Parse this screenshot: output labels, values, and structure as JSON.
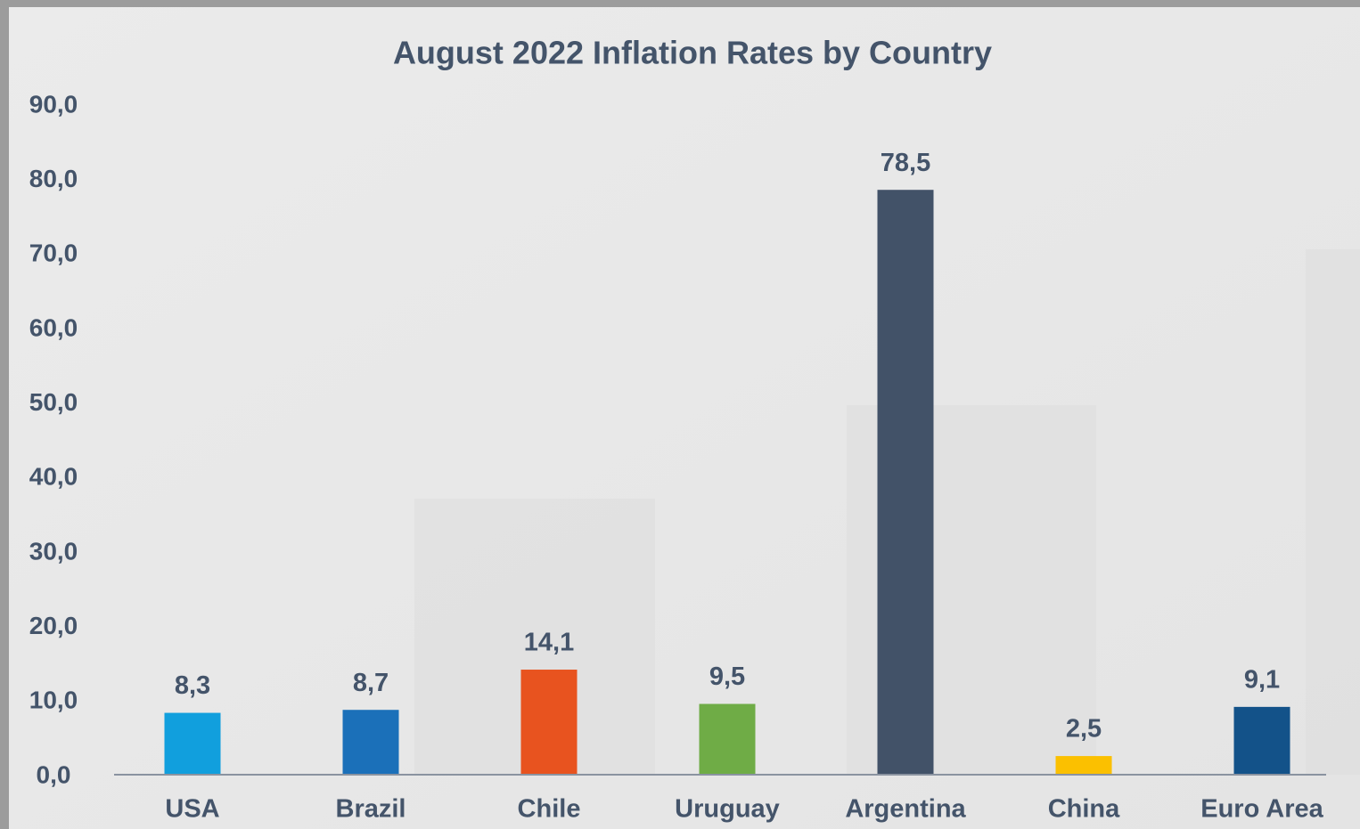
{
  "chart_data": {
    "type": "bar",
    "title": "August 2022 Inflation Rates by Country",
    "categories": [
      "USA",
      "Brazil",
      "Chile",
      "Uruguay",
      "Argentina",
      "China",
      "Euro Area"
    ],
    "values": [
      8.3,
      8.7,
      14.1,
      9.5,
      78.5,
      2.5,
      9.1
    ],
    "value_labels": [
      "8,3",
      "8,7",
      "14,1",
      "9,5",
      "78,5",
      "2,5",
      "9,1"
    ],
    "colors": [
      "#119fdd",
      "#1b70b9",
      "#e8531f",
      "#6fac46",
      "#425268",
      "#fbc000",
      "#135289"
    ],
    "ylim": [
      0,
      90
    ],
    "yticks": [
      {
        "value": 0,
        "label": "0,0"
      },
      {
        "value": 10,
        "label": "10,0"
      },
      {
        "value": 20,
        "label": "20,0"
      },
      {
        "value": 30,
        "label": "30,0"
      },
      {
        "value": 40,
        "label": "40,0"
      },
      {
        "value": 50,
        "label": "50,0"
      },
      {
        "value": 60,
        "label": "60,0"
      },
      {
        "value": 70,
        "label": "70,0"
      },
      {
        "value": 80,
        "label": "80,0"
      },
      {
        "value": 90,
        "label": "90,0"
      }
    ],
    "grid": false
  }
}
